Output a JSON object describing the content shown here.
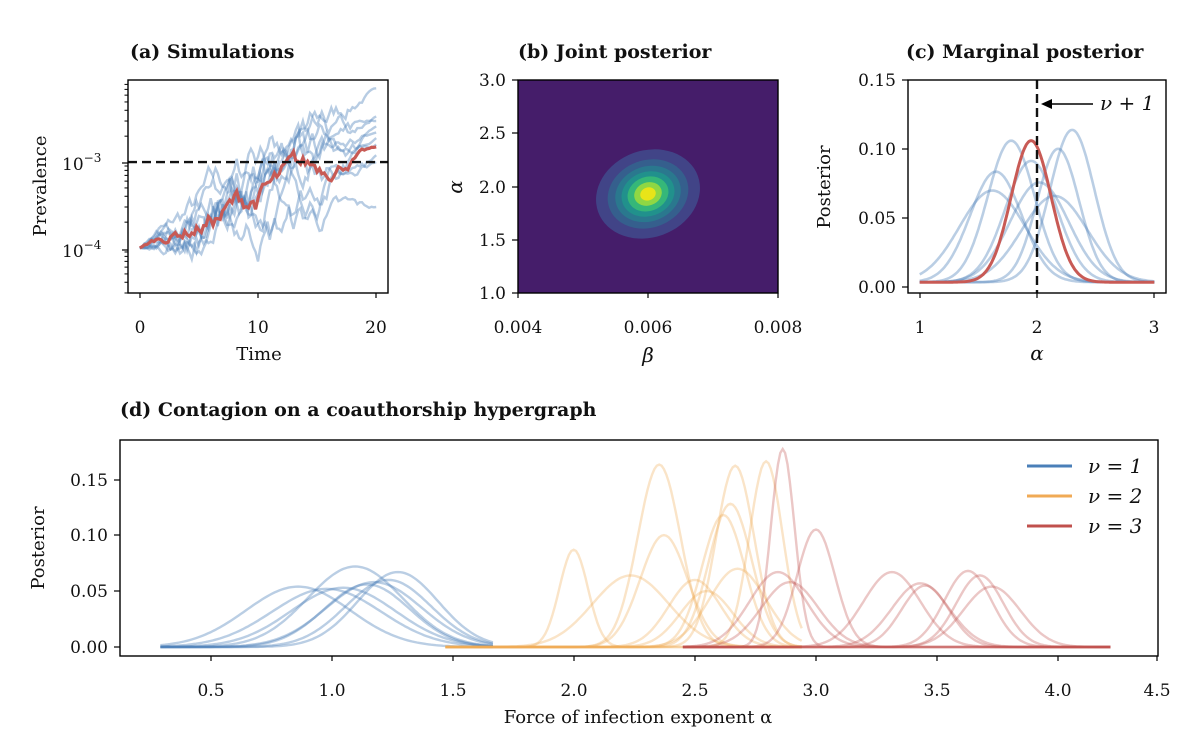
{
  "figure": {
    "a": {
      "title": "(a) Simulations",
      "xlabel": "Time",
      "ylabel": "Prevalence",
      "xticks": [
        "0",
        "10",
        "20"
      ],
      "ytick_base": "10",
      "ytick_exponents": [
        "−3",
        "−4"
      ]
    },
    "b": {
      "title": "(b) Joint posterior",
      "xlabel": "β",
      "ylabel": "α",
      "xticks": [
        "0.004",
        "0.006",
        "0.008"
      ],
      "yticks": [
        "3.0",
        "2.5",
        "2.0",
        "1.5",
        "1.0"
      ]
    },
    "c": {
      "title": "(c) Marginal posterior",
      "xlabel": "α",
      "ylabel": "Posterior",
      "xticks": [
        "1",
        "2",
        "3"
      ],
      "yticks": [
        "0.15",
        "0.10",
        "0.05",
        "0.00"
      ],
      "annotation": "ν + 1"
    },
    "d": {
      "title": "(d) Contagion on a coauthorship hypergraph",
      "xlabel": "Force of infection exponent α",
      "ylabel": "Posterior",
      "xticks": [
        "0.5",
        "1.0",
        "1.5",
        "2.0",
        "2.5",
        "3.0",
        "3.5",
        "4.0",
        "4.5"
      ],
      "yticks": [
        "0.15",
        "0.10",
        "0.05",
        "0.00"
      ],
      "legend": [
        "ν = 1",
        "ν = 2",
        "ν = 3"
      ]
    }
  },
  "colors": {
    "blue": "#4a7fb8",
    "orange": "#f0aa55",
    "red": "#c0504d",
    "redline": "#c85a55",
    "heat_bg": "#451d6a"
  },
  "chart_data": [
    {
      "id": "a",
      "type": "line",
      "title": "(a) Simulations",
      "xlabel": "Time",
      "ylabel": "Prevalence",
      "yscale": "log",
      "xlim": [
        -1,
        21
      ],
      "ylim": [
        3e-05,
        0.009
      ],
      "threshold": 0.001,
      "start": 0.0001,
      "blue_series_end": [
        0.0072,
        0.0034,
        0.003,
        0.0026,
        0.0022,
        0.0019,
        0.0016,
        0.0012,
        0.001,
        0.0003
      ],
      "red_series_end": 0.0015,
      "steps": 100
    },
    {
      "id": "b",
      "type": "heatmap",
      "title": "(b) Joint posterior",
      "xlabel": "β",
      "ylabel": "α",
      "xlim": [
        0.004,
        0.008
      ],
      "ylim": [
        1.0,
        3.0
      ],
      "peak": {
        "beta": 0.006,
        "alpha": 1.93
      },
      "sd": {
        "beta": 0.00038,
        "alpha": 0.19
      },
      "rho": -0.3,
      "levels": [
        0.1,
        0.25,
        0.4,
        0.55,
        0.7,
        0.85
      ],
      "level_colors": [
        "#414487",
        "#355f8d",
        "#2a788e",
        "#21918c",
        "#35b779",
        "#8fd744",
        "#e8e419"
      ]
    },
    {
      "id": "c",
      "type": "line",
      "title": "(c) Marginal posterior",
      "xlabel": "α",
      "ylabel": "Posterior",
      "xlim": [
        0.9,
        3.1
      ],
      "ylim": [
        -0.008,
        0.15
      ],
      "vline": 2.0,
      "blue_series": [
        {
          "mu": 1.65,
          "sd": 0.22,
          "amp": 0.082
        },
        {
          "mu": 1.78,
          "sd": 0.2,
          "amp": 0.105
        },
        {
          "mu": 1.62,
          "sd": 0.28,
          "amp": 0.068
        },
        {
          "mu": 2.3,
          "sd": 0.19,
          "amp": 0.113
        },
        {
          "mu": 2.18,
          "sd": 0.18,
          "amp": 0.099
        },
        {
          "mu": 2.02,
          "sd": 0.25,
          "amp": 0.074
        },
        {
          "mu": 2.15,
          "sd": 0.28,
          "amp": 0.064
        },
        {
          "mu": 1.95,
          "sd": 0.22,
          "amp": 0.09
        }
      ],
      "red_series": {
        "mu": 1.95,
        "sd": 0.17,
        "amp": 0.105
      }
    },
    {
      "id": "d",
      "type": "line",
      "title": "(d) Contagion on a coauthorship hypergraph",
      "xlabel": "Force of infection exponent α",
      "ylabel": "Posterior",
      "xlim": [
        0.13,
        4.5
      ],
      "ylim": [
        -0.008,
        0.185
      ],
      "series": [
        {
          "name": "ν = 1",
          "color": "blue",
          "range": [
            0.3,
            1.7
          ],
          "curves": [
            {
              "mu": 0.88,
              "sd": 0.22,
              "amp": 0.054
            },
            {
              "mu": 1.0,
              "sd": 0.23,
              "amp": 0.052
            },
            {
              "mu": 1.07,
              "sd": 0.22,
              "amp": 0.053
            },
            {
              "mu": 1.12,
              "sd": 0.2,
              "amp": 0.072
            },
            {
              "mu": 1.17,
              "sd": 0.18,
              "amp": 0.056
            },
            {
              "mu": 1.2,
              "sd": 0.2,
              "amp": 0.058
            },
            {
              "mu": 1.26,
              "sd": 0.18,
              "amp": 0.06
            },
            {
              "mu": 1.3,
              "sd": 0.17,
              "amp": 0.067
            }
          ]
        },
        {
          "name": "ν = 2",
          "color": "orange",
          "range": [
            1.5,
            3.0
          ],
          "curves": [
            {
              "mu": 2.04,
              "sd": 0.06,
              "amp": 0.087
            },
            {
              "mu": 2.28,
              "sd": 0.16,
              "amp": 0.064
            },
            {
              "mu": 2.4,
              "sd": 0.09,
              "amp": 0.163
            },
            {
              "mu": 2.42,
              "sd": 0.1,
              "amp": 0.1
            },
            {
              "mu": 2.55,
              "sd": 0.11,
              "amp": 0.06
            },
            {
              "mu": 2.6,
              "sd": 0.11,
              "amp": 0.05
            },
            {
              "mu": 2.67,
              "sd": 0.09,
              "amp": 0.118
            },
            {
              "mu": 2.7,
              "sd": 0.09,
              "amp": 0.128
            },
            {
              "mu": 2.72,
              "sd": 0.08,
              "amp": 0.162
            },
            {
              "mu": 2.73,
              "sd": 0.12,
              "amp": 0.07
            },
            {
              "mu": 2.85,
              "sd": 0.07,
              "amp": 0.166
            }
          ]
        },
        {
          "name": "ν = 3",
          "color": "red",
          "range": [
            2.5,
            4.3
          ],
          "curves": [
            {
              "mu": 2.9,
              "sd": 0.12,
              "amp": 0.067
            },
            {
              "mu": 2.92,
              "sd": 0.05,
              "amp": 0.177
            },
            {
              "mu": 2.95,
              "sd": 0.12,
              "amp": 0.058
            },
            {
              "mu": 3.06,
              "sd": 0.08,
              "amp": 0.105
            },
            {
              "mu": 3.38,
              "sd": 0.12,
              "amp": 0.067
            },
            {
              "mu": 3.5,
              "sd": 0.12,
              "amp": 0.057
            },
            {
              "mu": 3.52,
              "sd": 0.1,
              "amp": 0.055
            },
            {
              "mu": 3.7,
              "sd": 0.1,
              "amp": 0.068
            },
            {
              "mu": 3.75,
              "sd": 0.1,
              "amp": 0.064
            },
            {
              "mu": 3.8,
              "sd": 0.12,
              "amp": 0.054
            }
          ]
        }
      ]
    }
  ]
}
